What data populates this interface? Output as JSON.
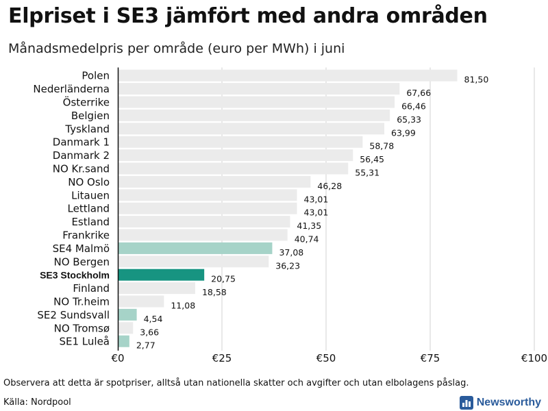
{
  "title": "Elpriset i SE3 jämfört med andra områden",
  "subtitle": "Månadsmedelpris per område (euro per MWh) i juni",
  "footnote": "Observera att detta är spotpriser, alltså utan nationella skatter och avgifter och utan elbolagens påslag.",
  "source": "Källa: Nordpool",
  "brand": {
    "name": "Newsworthy",
    "icon": "newsworthy-logo-icon"
  },
  "colors": {
    "default_bar": "#ebebeb",
    "se_bar": "#a6d3c8",
    "highlight_bar": "#179481",
    "baseline": "#111111",
    "grid": "#d0d0d0",
    "brand": "#2a5b9b"
  },
  "chart_data": {
    "type": "bar",
    "orientation": "horizontal",
    "title": "Elpriset i SE3 jämfört med andra områden",
    "subtitle": "Månadsmedelpris per område (euro per MWh) i juni",
    "xlabel": "",
    "ylabel": "",
    "xlim": [
      0,
      100
    ],
    "x_ticks": [
      0,
      25,
      50,
      75,
      100
    ],
    "x_tick_labels": [
      "€0",
      "€25",
      "€50",
      "€75",
      "€100"
    ],
    "grid": true,
    "categories": [
      "Polen",
      "Nederländerna",
      "Österrike",
      "Belgien",
      "Tyskland",
      "Danmark  1",
      "Danmark  2",
      "NO Kr.sand",
      "NO Oslo",
      "Litauen",
      "Lettland",
      "Estland",
      "Frankrike",
      "SE4  Malmö",
      "NO Bergen",
      "SE3 Stockholm",
      "Finland",
      "NO Tr.heim",
      "SE2  Sundsvall",
      "NO Tromsø",
      "SE1  Luleå"
    ],
    "values": [
      81.5,
      67.66,
      66.46,
      65.33,
      63.99,
      58.78,
      56.45,
      55.31,
      46.28,
      43.01,
      43.01,
      41.35,
      40.74,
      37.08,
      36.23,
      20.75,
      18.58,
      11.08,
      4.54,
      3.66,
      2.77
    ],
    "value_labels": [
      "81,50",
      "67,66",
      "66,46",
      "65,33",
      "63,99",
      "58,78",
      "56,45",
      "55,31",
      "46,28",
      "43,01",
      "43,01",
      "41,35",
      "40,74",
      "37,08",
      "36,23",
      "20,75",
      "18,58",
      "11,08",
      "4,54",
      "3,66",
      "2,77"
    ],
    "bar_style": [
      "default",
      "default",
      "default",
      "default",
      "default",
      "default",
      "default",
      "default",
      "default",
      "default",
      "default",
      "default",
      "default",
      "se",
      "default",
      "highlight",
      "default",
      "default",
      "se",
      "default",
      "se"
    ],
    "highlight_category": "SE3 Stockholm"
  }
}
